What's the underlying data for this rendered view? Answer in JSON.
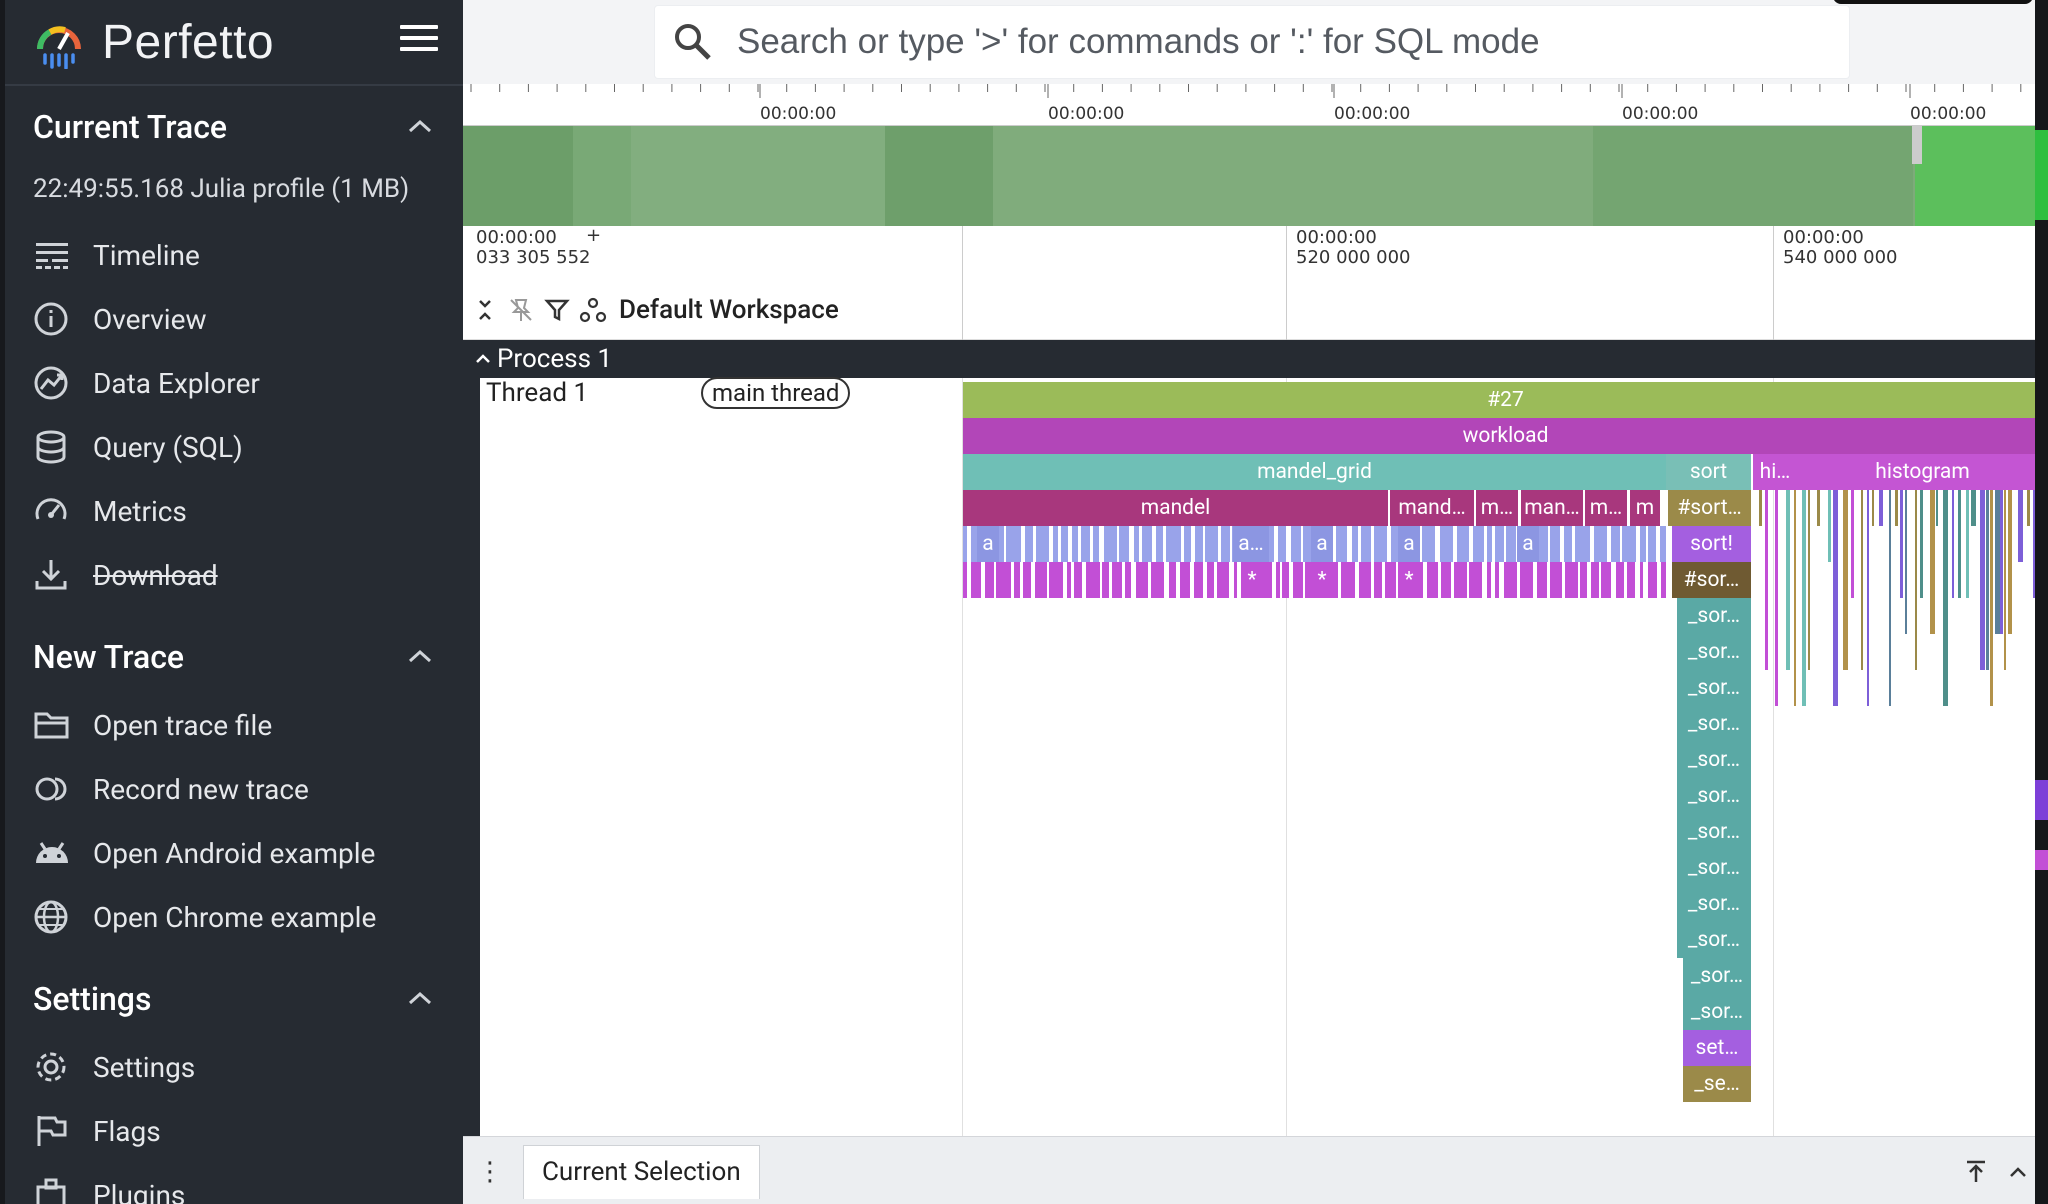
{
  "app": {
    "name": "Perfetto"
  },
  "search": {
    "placeholder": "Search or type '>' for commands or ':' for SQL mode"
  },
  "sidebar": {
    "current_trace": {
      "title": "Current Trace",
      "trace_info": "22:49:55.168 Julia profile (1 MB)",
      "items": [
        {
          "label": "Timeline",
          "icon": "timeline-icon"
        },
        {
          "label": "Overview",
          "icon": "info-icon"
        },
        {
          "label": "Data Explorer",
          "icon": "data-explorer-icon"
        },
        {
          "label": "Query (SQL)",
          "icon": "database-icon"
        },
        {
          "label": "Metrics",
          "icon": "speedometer-icon"
        },
        {
          "label": "Download",
          "icon": "download-icon",
          "disabled": true
        }
      ]
    },
    "new_trace": {
      "title": "New Trace",
      "items": [
        {
          "label": "Open trace file",
          "icon": "folder-icon"
        },
        {
          "label": "Record new trace",
          "icon": "record-icon"
        },
        {
          "label": "Open Android example",
          "icon": "android-icon"
        },
        {
          "label": "Open Chrome example",
          "icon": "globe-icon"
        }
      ]
    },
    "settings": {
      "title": "Settings",
      "items": [
        {
          "label": "Settings",
          "icon": "gear-icon"
        },
        {
          "label": "Flags",
          "icon": "flag-icon"
        },
        {
          "label": "Plugins",
          "icon": "plugin-icon"
        }
      ]
    }
  },
  "overview": {
    "tick_labels": [
      "00:00:00",
      "00:00:00",
      "00:00:00",
      "00:00:00",
      "00:00:00"
    ]
  },
  "timeaxis": {
    "labels": [
      {
        "top": "00:00:00",
        "bottom": "033 305 552"
      },
      {
        "top": "00:00:00",
        "bottom": "520 000 000"
      },
      {
        "top": "00:00:00",
        "bottom": "540 000 000"
      }
    ],
    "plus": "+",
    "workspace": "Default Workspace"
  },
  "process": {
    "label": "Process 1"
  },
  "thread": {
    "label": "Thread 1",
    "chip": "main thread"
  },
  "slices": {
    "row0": [
      "#27"
    ],
    "row1": [
      "workload"
    ],
    "row2": [
      "mandel_grid",
      "sort",
      "hi…",
      "histogram"
    ],
    "row3": [
      "mandel",
      "mand…",
      "m…",
      "man…",
      "m…",
      "m",
      "#sort…"
    ],
    "row4": [
      "a",
      "a…",
      "a",
      "a",
      "a",
      "sort!"
    ],
    "row5": [
      "*",
      "*",
      "*",
      "#sor…"
    ],
    "sort_stack": [
      "_sor…",
      "_sor…",
      "_sor…",
      "_sor…",
      "_sor…",
      "_sor…",
      "_sor…",
      "_sor…",
      "_sor…",
      "_sor…",
      "_sor…",
      "_sor…",
      "set…",
      "_se…"
    ]
  },
  "bottom": {
    "tab": "Current Selection",
    "menu_icon": "⋮"
  },
  "colors": {
    "sidebar_bg": "#262b32",
    "slice_green": "#9bbb59",
    "slice_magenta": "#b246b8",
    "slice_teal": "#6fbfb6",
    "slice_plum": "#a8377d",
    "slice_lavender": "#99a3ea",
    "slice_pink": "#c24fd6",
    "slice_sort_teal": "#5aa9a5",
    "slice_purple": "#a45fe0",
    "slice_olive": "#9b8a49"
  }
}
